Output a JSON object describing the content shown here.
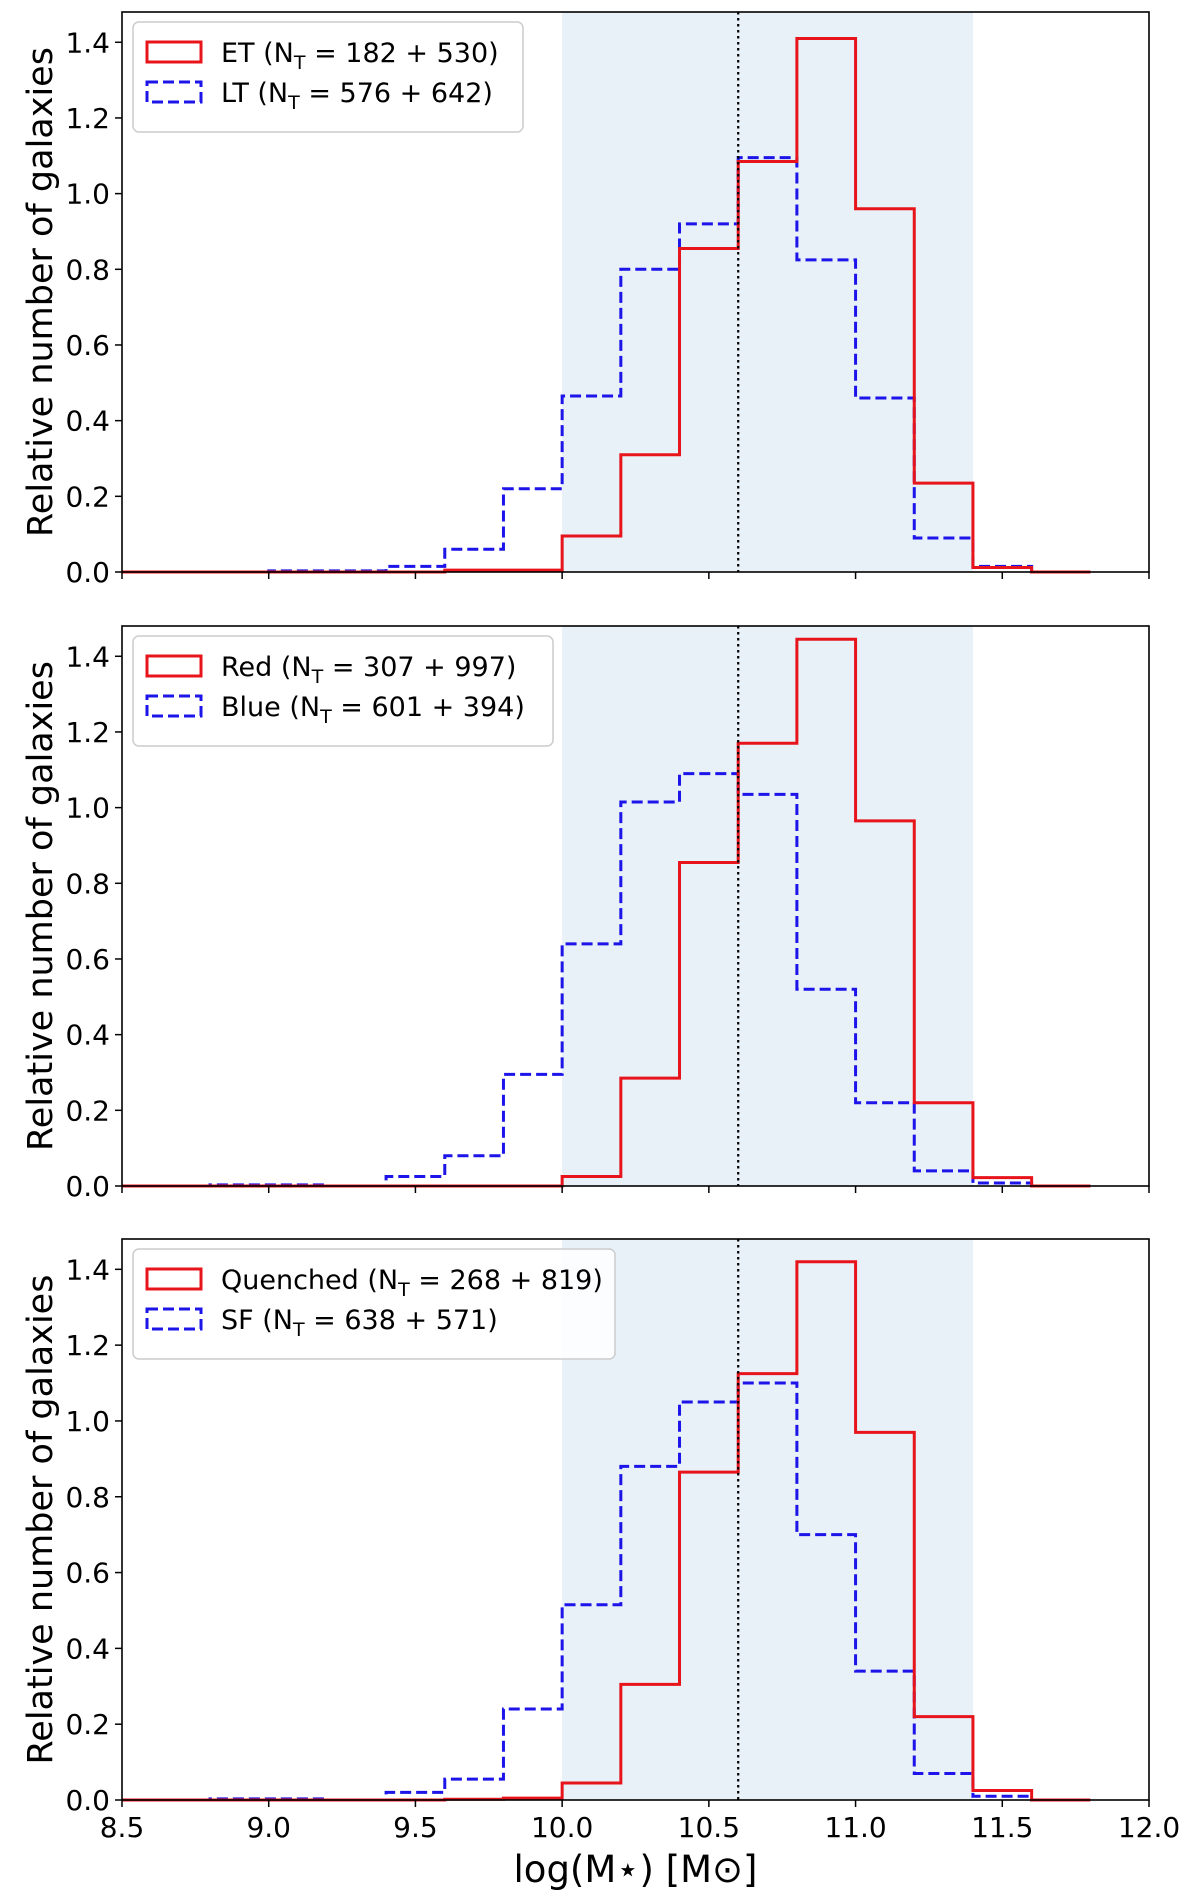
{
  "figure": {
    "xlabel": "log(M⋆) [M⊙]",
    "ylabel": "Relative number of galaxies",
    "shade_range": [
      10.0,
      11.4
    ],
    "vline_x": 10.6,
    "shade_color": "#e8f0f8",
    "red_color": "#e8141c",
    "blue_color": "#1c14e8"
  },
  "chart_data": [
    {
      "type": "histogram",
      "title": "",
      "xlabel": "",
      "ylabel": "Relative number of galaxies",
      "xlim": [
        8.5,
        12.0
      ],
      "ylim": [
        0,
        1.48
      ],
      "xticks": [
        8.5,
        9.0,
        9.5,
        10.0,
        10.5,
        11.0,
        11.5,
        12.0
      ],
      "yticks": [
        0.0,
        0.2,
        0.4,
        0.6,
        0.8,
        1.0,
        1.2,
        1.4
      ],
      "ytick_labels": [
        "0.0",
        "0.2",
        "0.4",
        "0.6",
        "0.8",
        "1.0",
        "1.2",
        "1.4"
      ],
      "show_xtick_labels": false,
      "legend_position": "top-left",
      "bin_edges": [
        8.6,
        8.8,
        9.0,
        9.2,
        9.4,
        9.6,
        9.8,
        10.0,
        10.2,
        10.4,
        10.6,
        10.8,
        11.0,
        11.2,
        11.4,
        11.6,
        11.8
      ],
      "series": [
        {
          "name": "ET",
          "legend_label": "ET (N",
          "legend_sub": "T",
          "legend_counts": " =  182 + 530)",
          "style": "solid",
          "values": [
            0.0,
            0.0,
            0.0,
            0.0,
            0.0,
            0.005,
            0.005,
            0.095,
            0.31,
            0.855,
            1.085,
            1.41,
            0.96,
            0.235,
            0.012,
            0.0
          ]
        },
        {
          "name": "LT",
          "legend_label": "LT (N",
          "legend_sub": "T",
          "legend_counts": " =  576 + 642)",
          "style": "dashed",
          "values": [
            0.0,
            0.0,
            0.003,
            0.003,
            0.015,
            0.06,
            0.22,
            0.465,
            0.8,
            0.92,
            1.095,
            0.825,
            0.46,
            0.09,
            0.015,
            0.0
          ]
        }
      ]
    },
    {
      "type": "histogram",
      "title": "",
      "xlabel": "",
      "ylabel": "Relative number of galaxies",
      "xlim": [
        8.5,
        12.0
      ],
      "ylim": [
        0,
        1.48
      ],
      "xticks": [
        8.5,
        9.0,
        9.5,
        10.0,
        10.5,
        11.0,
        11.5,
        12.0
      ],
      "yticks": [
        0.0,
        0.2,
        0.4,
        0.6,
        0.8,
        1.0,
        1.2,
        1.4
      ],
      "ytick_labels": [
        "0.0",
        "0.2",
        "0.4",
        "0.6",
        "0.8",
        "1.0",
        "1.2",
        "1.4"
      ],
      "show_xtick_labels": false,
      "legend_position": "top-left",
      "bin_edges": [
        8.6,
        8.8,
        9.0,
        9.2,
        9.4,
        9.6,
        9.8,
        10.0,
        10.2,
        10.4,
        10.6,
        10.8,
        11.0,
        11.2,
        11.4,
        11.6,
        11.8
      ],
      "series": [
        {
          "name": "Red",
          "legend_label": "Red (N",
          "legend_sub": "T",
          "legend_counts": " =  307 + 997)",
          "style": "solid",
          "values": [
            0.0,
            0.0,
            0.0,
            0.0,
            0.0,
            0.0,
            0.0,
            0.025,
            0.285,
            0.855,
            1.17,
            1.445,
            0.965,
            0.22,
            0.022,
            0.0
          ]
        },
        {
          "name": "Blue",
          "legend_label": "Blue (N",
          "legend_sub": "T",
          "legend_counts": " =  601 + 394)",
          "style": "dashed",
          "values": [
            0.0,
            0.003,
            0.003,
            0.0,
            0.025,
            0.08,
            0.295,
            0.64,
            1.015,
            1.09,
            1.035,
            0.52,
            0.22,
            0.04,
            0.008,
            0.0
          ]
        }
      ]
    },
    {
      "type": "histogram",
      "title": "",
      "xlabel": "log(M⋆) [M⊙]",
      "ylabel": "Relative number of galaxies",
      "xlim": [
        8.5,
        12.0
      ],
      "ylim": [
        0,
        1.48
      ],
      "xticks": [
        8.5,
        9.0,
        9.5,
        10.0,
        10.5,
        11.0,
        11.5,
        12.0
      ],
      "xtick_labels": [
        "8.5",
        "9.0",
        "9.5",
        "10.0",
        "10.5",
        "11.0",
        "11.5",
        "12.0"
      ],
      "yticks": [
        0.0,
        0.2,
        0.4,
        0.6,
        0.8,
        1.0,
        1.2,
        1.4
      ],
      "ytick_labels": [
        "0.0",
        "0.2",
        "0.4",
        "0.6",
        "0.8",
        "1.0",
        "1.2",
        "1.4"
      ],
      "show_xtick_labels": true,
      "legend_position": "top-left",
      "bin_edges": [
        8.6,
        8.8,
        9.0,
        9.2,
        9.4,
        9.6,
        9.8,
        10.0,
        10.2,
        10.4,
        10.6,
        10.8,
        11.0,
        11.2,
        11.4,
        11.6,
        11.8
      ],
      "series": [
        {
          "name": "Quenched",
          "legend_label": "Quenched (N",
          "legend_sub": "T",
          "legend_counts": " =  268 + 819)",
          "style": "solid",
          "values": [
            0.0,
            0.0,
            0.0,
            0.0,
            0.0,
            0.002,
            0.005,
            0.045,
            0.305,
            0.865,
            1.125,
            1.42,
            0.97,
            0.22,
            0.025,
            0.0
          ]
        },
        {
          "name": "SF",
          "legend_label": "SF (N",
          "legend_sub": "T",
          "legend_counts": " =  638 + 571)",
          "style": "dashed",
          "values": [
            0.0,
            0.003,
            0.003,
            0.0,
            0.02,
            0.055,
            0.24,
            0.515,
            0.88,
            1.05,
            1.1,
            0.7,
            0.34,
            0.07,
            0.01,
            0.0
          ]
        }
      ]
    }
  ]
}
